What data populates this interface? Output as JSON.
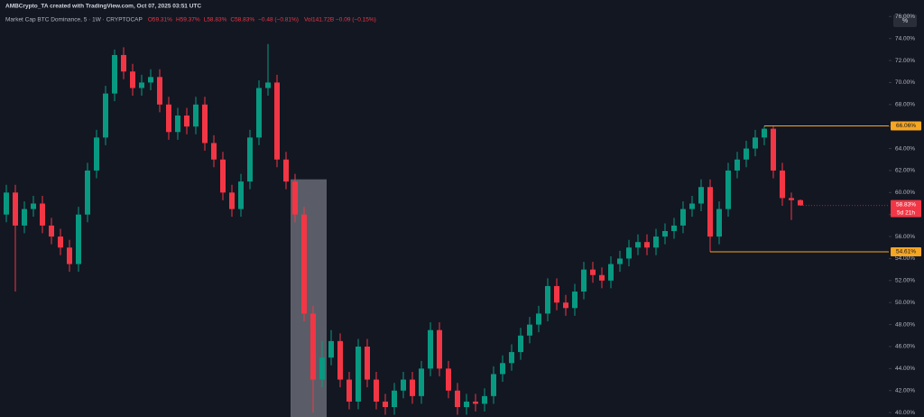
{
  "header": "AMBCrypto_TA created with TradingView.com, Oct 07, 2025 03:51 UTC",
  "chart_data": {
    "type": "candlestick",
    "title": "Market Cap BTC Dominance, 5 · 1W · CRYPTOCAP",
    "legend": [
      "O59.31%",
      "H59.37%",
      "L58.83%",
      "C58.83%",
      "−0.48 (−0.81%)"
    ],
    "volume": "Vol141.72B −0.09 (−0.15%)",
    "up_color": "#089981",
    "down_color": "#f23645",
    "scale_label": "%",
    "ylim": [
      39.6,
      77.5
    ],
    "yticks": [
      {
        "value": 40,
        "label": "40.00%"
      },
      {
        "value": 42,
        "label": "42.00%"
      },
      {
        "value": 44,
        "label": "44.00%"
      },
      {
        "value": 46,
        "label": "46.00%"
      },
      {
        "value": 48,
        "label": "48.00%"
      },
      {
        "value": 50,
        "label": "50.00%"
      },
      {
        "value": 52,
        "label": "52.00%"
      },
      {
        "value": 54,
        "label": "54.00%"
      },
      {
        "value": 56,
        "label": "56.00%"
      },
      {
        "value": 58,
        "label": "58.00%"
      },
      {
        "value": 60,
        "label": "60.00%"
      },
      {
        "value": 62,
        "label": "62.00%"
      },
      {
        "value": 64,
        "label": "64.00%"
      },
      {
        "value": 66,
        "label": "66.00%"
      },
      {
        "value": 68,
        "label": "68.00%"
      },
      {
        "value": 70,
        "label": "70.00%"
      },
      {
        "value": 72,
        "label": "72.00%"
      },
      {
        "value": 74,
        "label": "74.00%"
      },
      {
        "value": 76,
        "label": "76.00%"
      }
    ],
    "grid": false,
    "open": [
      58,
      60,
      57,
      58.5,
      59,
      57,
      56,
      55,
      53.5,
      58,
      62,
      65,
      69,
      72.5,
      71,
      69.5,
      70,
      70.5,
      68,
      65.5,
      67,
      66,
      68,
      64.5,
      63,
      60,
      58.5,
      61,
      65,
      69.5,
      70,
      63,
      61,
      58,
      49,
      43,
      45,
      46.5,
      43,
      41,
      46,
      43,
      41,
      40.5,
      42,
      43,
      41.5,
      44,
      47.5,
      44,
      42,
      40.5,
      41,
      40.8,
      41.5,
      43.5,
      44.5,
      45.5,
      47,
      48,
      49,
      51.5,
      50,
      49.5,
      51,
      53,
      52.5,
      52,
      53.5,
      54,
      55,
      55.5,
      55,
      56,
      56.5,
      57,
      58.5,
      59,
      60.5,
      56,
      58.5,
      62,
      63,
      64,
      65,
      65.8,
      62,
      59.5,
      59.31
    ],
    "high": [
      60.7,
      60.7,
      59.2,
      59.7,
      59.7,
      57.7,
      56.7,
      55.7,
      58.7,
      62.7,
      65.7,
      69.7,
      73,
      73.2,
      71.7,
      70.7,
      71.2,
      71.2,
      68.7,
      67.7,
      67.7,
      68.7,
      68.7,
      65.2,
      63.7,
      60.7,
      61.7,
      65.7,
      70.2,
      73.5,
      70.7,
      63.7,
      61.7,
      58.7,
      49.7,
      46.5,
      47.5,
      47.2,
      43.7,
      46.7,
      46.7,
      43.7,
      41.7,
      42.7,
      43.7,
      43.7,
      44.7,
      48.2,
      48.2,
      44.7,
      42.7,
      41.7,
      41.7,
      42.2,
      44.2,
      45.2,
      46.2,
      47.7,
      48.7,
      49.7,
      52.2,
      52.2,
      50.7,
      51.7,
      53.7,
      53.7,
      53.2,
      54.2,
      54.7,
      55.7,
      56.2,
      56.2,
      56.7,
      57.2,
      57.7,
      59.2,
      59.7,
      61.2,
      61.2,
      59.2,
      62.7,
      63.7,
      64.7,
      65.7,
      66.06,
      66,
      62.7,
      60,
      59.37
    ],
    "low": [
      57.3,
      51,
      56.3,
      57.8,
      56.3,
      55.3,
      54.3,
      52.8,
      52.8,
      57.3,
      61.3,
      64.3,
      68.3,
      70.3,
      68.8,
      68.8,
      69.3,
      67.3,
      64.8,
      64.8,
      65.3,
      65.3,
      63.8,
      62.3,
      59.3,
      57.8,
      57.8,
      60.3,
      64.3,
      68.8,
      62.3,
      60.3,
      57.3,
      48.3,
      40,
      42.3,
      44.3,
      42.3,
      40.3,
      40.3,
      42.3,
      40.3,
      39.8,
      39.8,
      41.3,
      40.8,
      40.8,
      43.3,
      43.3,
      41.3,
      39.8,
      39.8,
      40.1,
      40.1,
      40.8,
      42.8,
      43.8,
      44.8,
      46.3,
      47.3,
      48.3,
      49.3,
      48.8,
      48.8,
      50.3,
      51.8,
      51.3,
      51.3,
      52.8,
      53.3,
      54.3,
      54.3,
      54.3,
      55.3,
      55.8,
      56.3,
      57.8,
      58.3,
      54.61,
      55.3,
      57.8,
      61.3,
      62.3,
      63.3,
      64.3,
      61.3,
      58.8,
      57.5,
      58.83
    ],
    "close": [
      60,
      57,
      58.5,
      59,
      57,
      56,
      55,
      53.5,
      58,
      62,
      65,
      69,
      72.5,
      71,
      69.5,
      70,
      70.5,
      68,
      65.5,
      67,
      66,
      68,
      64.5,
      63,
      60,
      58.5,
      61,
      65,
      69.5,
      70,
      63,
      61,
      58,
      49,
      43,
      45,
      46.5,
      43,
      41,
      46,
      43,
      41,
      40.5,
      42,
      43,
      41.5,
      44,
      47.5,
      44,
      42,
      40.5,
      41,
      40.8,
      41.5,
      43.5,
      44.5,
      45.5,
      47,
      48,
      49,
      51.5,
      50,
      49.5,
      51,
      53,
      52.5,
      52,
      53.5,
      54,
      55,
      55.5,
      55,
      56,
      56.5,
      57,
      58.5,
      59,
      60.5,
      56,
      58.5,
      62,
      63,
      64,
      65,
      65.8,
      62,
      59.5,
      59.31,
      58.83
    ],
    "levels": [
      {
        "value": 66.06,
        "label": "66.06%",
        "from_index": 84,
        "color": "#f5a623"
      },
      {
        "value": 54.61,
        "label": "54.61%",
        "from_index": 78,
        "color": "#f5a623"
      }
    ],
    "highlight": {
      "from_index": 32,
      "to_index": 35,
      "ymin": 39.6,
      "ymax": 61.2,
      "color": "#9598a1"
    },
    "last_price": {
      "value": 58.83,
      "label": "58.83%",
      "countdown": "5d 21h"
    }
  }
}
